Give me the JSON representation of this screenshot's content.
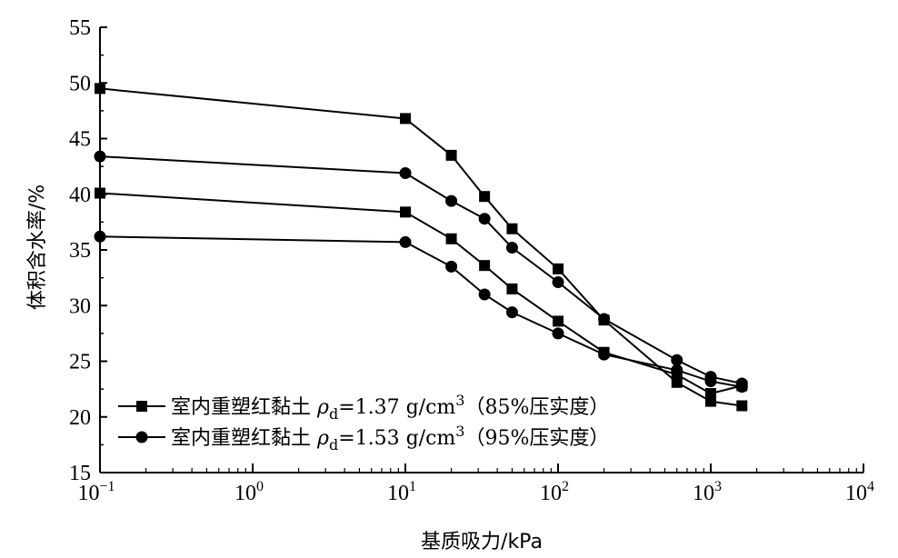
{
  "chart_data": {
    "type": "line",
    "xscale": "log",
    "xlabel": "基质吸力/kPa",
    "ylabel": "体积含水率/%",
    "xlim": [
      0.1,
      10000
    ],
    "ylim": [
      15,
      55
    ],
    "xticks": [
      {
        "value": 0.1,
        "label_base": "10",
        "label_exp": "−1"
      },
      {
        "value": 1,
        "label_base": "10",
        "label_exp": "0"
      },
      {
        "value": 10,
        "label_base": "10",
        "label_exp": "1"
      },
      {
        "value": 100,
        "label_base": "10",
        "label_exp": "2"
      },
      {
        "value": 1000,
        "label_base": "10",
        "label_exp": "3"
      },
      {
        "value": 10000,
        "label_base": "10",
        "label_exp": "4"
      }
    ],
    "yticks": [
      15,
      20,
      25,
      30,
      35,
      40,
      45,
      50,
      55
    ],
    "legend_position": "bottom-left",
    "series": [
      {
        "group": "rho_1.37",
        "marker": "square",
        "legend_text_main": "室内重塑红黏土 ",
        "legend_text_rho": "ρ",
        "legend_text_sub": "d",
        "legend_text_value": "=1.37 g/cm",
        "legend_text_sup": "3",
        "legend_text_tail": "（85%压实度）",
        "x": [
          0.1,
          10,
          20,
          33,
          50,
          100,
          200,
          600,
          1000,
          1600
        ],
        "y": [
          49.5,
          46.8,
          43.5,
          39.8,
          36.9,
          33.3,
          28.7,
          23.1,
          21.4,
          21.0
        ]
      },
      {
        "group": "rho_1.37",
        "marker": "square",
        "x": [
          0.1,
          10,
          20,
          33,
          50,
          100,
          200,
          600,
          1000,
          1600
        ],
        "y": [
          40.1,
          38.4,
          36.0,
          33.6,
          31.5,
          28.6,
          25.8,
          23.8,
          22.1,
          22.8
        ]
      },
      {
        "group": "rho_1.53",
        "marker": "circle",
        "legend_text_main": "室内重塑红黏土 ",
        "legend_text_rho": "ρ",
        "legend_text_sub": "d",
        "legend_text_value": "=1.53 g/cm",
        "legend_text_sup": "3",
        "legend_text_tail": "（95%压实度）",
        "x": [
          0.1,
          10,
          20,
          33,
          50,
          100,
          200,
          600,
          1000,
          1600
        ],
        "y": [
          43.4,
          41.9,
          39.4,
          37.8,
          35.2,
          32.1,
          28.8,
          25.1,
          23.6,
          23.0
        ]
      },
      {
        "group": "rho_1.53",
        "marker": "circle",
        "x": [
          0.1,
          10,
          20,
          33,
          50,
          100,
          200,
          600,
          1000,
          1600
        ],
        "y": [
          36.2,
          35.7,
          33.5,
          31.0,
          29.4,
          27.5,
          25.6,
          24.2,
          23.2,
          22.7
        ]
      }
    ]
  }
}
